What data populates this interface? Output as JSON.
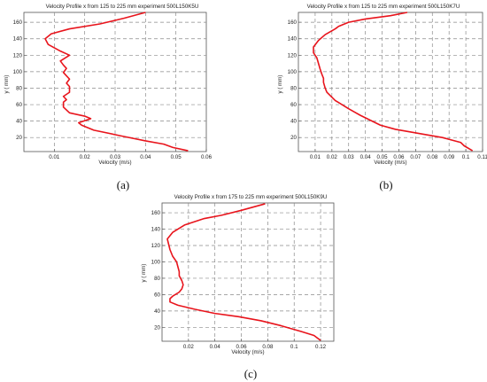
{
  "chart_data": [
    {
      "type": "line",
      "title": "Velocity Profile x from 125 to 225 mm experiment 500L150K5U",
      "xlabel": "Velocity  (m/s)",
      "ylabel": "y ( mm)",
      "caption": "(a)",
      "xlim": [
        0,
        0.06
      ],
      "ylim": [
        3,
        172
      ],
      "xticks": [
        "0.01",
        "0.02",
        "0.03",
        "0.04",
        "0.05",
        "0.06"
      ],
      "xtick_values": [
        0.01,
        0.02,
        0.03,
        0.04,
        0.05,
        0.06
      ],
      "yticks": [
        "20",
        "40",
        "60",
        "80",
        "100",
        "120",
        "140",
        "160"
      ],
      "ytick_values": [
        20,
        40,
        60,
        80,
        100,
        120,
        140,
        160
      ],
      "grid": true,
      "series": [
        {
          "color": "#e8141c",
          "x": [
            0.054,
            0.049,
            0.046,
            0.04,
            0.032,
            0.023,
            0.019,
            0.018,
            0.022,
            0.02,
            0.015,
            0.013,
            0.013,
            0.014,
            0.013,
            0.015,
            0.015,
            0.014,
            0.015,
            0.014,
            0.013,
            0.014,
            0.013,
            0.012,
            0.015,
            0.012,
            0.008,
            0.007,
            0.009,
            0.015,
            0.025,
            0.033,
            0.04
          ],
          "y": [
            4,
            8,
            12,
            16,
            22,
            29,
            35,
            38,
            43,
            46,
            50,
            57,
            63,
            66,
            70,
            75,
            82,
            86,
            91,
            95,
            99,
            104,
            108,
            113,
            120,
            125,
            133,
            140,
            146,
            152,
            158,
            165,
            172
          ]
        }
      ]
    },
    {
      "type": "line",
      "title": "Velocity Profile x from 125 to 225 mm experiment 500L150K7U",
      "xlabel": "Velocity  (m/s)",
      "ylabel": "y ( mm)",
      "caption": "(b)",
      "xlim": [
        0,
        0.11
      ],
      "ylim": [
        3,
        172
      ],
      "xticks": [
        "0.01",
        "0.02",
        "0.03",
        "0.04",
        "0.05",
        "0.06",
        "0.07",
        "0.08",
        "0.09",
        "0.1",
        "0.11"
      ],
      "xtick_values": [
        0.01,
        0.02,
        0.03,
        0.04,
        0.05,
        0.06,
        0.07,
        0.08,
        0.09,
        0.1,
        0.11
      ],
      "yticks": [
        "20",
        "40",
        "60",
        "80",
        "100",
        "120",
        "140",
        "160"
      ],
      "ytick_values": [
        20,
        40,
        60,
        80,
        100,
        120,
        140,
        160
      ],
      "grid": true,
      "series": [
        {
          "color": "#e8141c",
          "x": [
            0.104,
            0.099,
            0.097,
            0.086,
            0.072,
            0.058,
            0.049,
            0.044,
            0.037,
            0.03,
            0.022,
            0.017,
            0.016,
            0.015,
            0.015,
            0.014,
            0.013,
            0.012,
            0.011,
            0.009,
            0.009,
            0.012,
            0.016,
            0.022,
            0.024,
            0.03,
            0.04,
            0.055,
            0.065
          ],
          "y": [
            4,
            10,
            14,
            20,
            25,
            30,
            35,
            40,
            47,
            55,
            65,
            75,
            80,
            87,
            92,
            97,
            103,
            110,
            117,
            123,
            130,
            138,
            145,
            152,
            155,
            160,
            164,
            168,
            172
          ]
        }
      ]
    },
    {
      "type": "line",
      "title": "Velocity Profile x from 175 to 225 mm experiment 500L150K9U",
      "xlabel": "Velocity  (m/s)",
      "ylabel": "y ( mm)",
      "caption": "(c)",
      "xlim": [
        0,
        0.13
      ],
      "ylim": [
        3,
        172
      ],
      "xticks": [
        "0.02",
        "0.04",
        "0.06",
        "0.08",
        "0.1",
        "0.12"
      ],
      "xtick_values": [
        0.02,
        0.04,
        0.06,
        0.08,
        0.1,
        0.12
      ],
      "yticks": [
        "20",
        "40",
        "60",
        "80",
        "100",
        "120",
        "140",
        "160"
      ],
      "ytick_values": [
        20,
        40,
        60,
        80,
        100,
        120,
        140,
        160
      ],
      "grid": true,
      "series": [
        {
          "color": "#e8141c",
          "x": [
            0.12,
            0.115,
            0.105,
            0.09,
            0.075,
            0.058,
            0.04,
            0.025,
            0.012,
            0.006,
            0.006,
            0.008,
            0.013,
            0.015,
            0.016,
            0.015,
            0.013,
            0.013,
            0.012,
            0.011,
            0.008,
            0.006,
            0.004,
            0.008,
            0.017,
            0.032,
            0.045,
            0.06,
            0.078
          ],
          "y": [
            4,
            10,
            15,
            22,
            28,
            33,
            37,
            42,
            47,
            51,
            55,
            58,
            63,
            67,
            72,
            77,
            83,
            88,
            94,
            100,
            107,
            115,
            128,
            136,
            145,
            153,
            157,
            163,
            171
          ]
        }
      ]
    }
  ]
}
